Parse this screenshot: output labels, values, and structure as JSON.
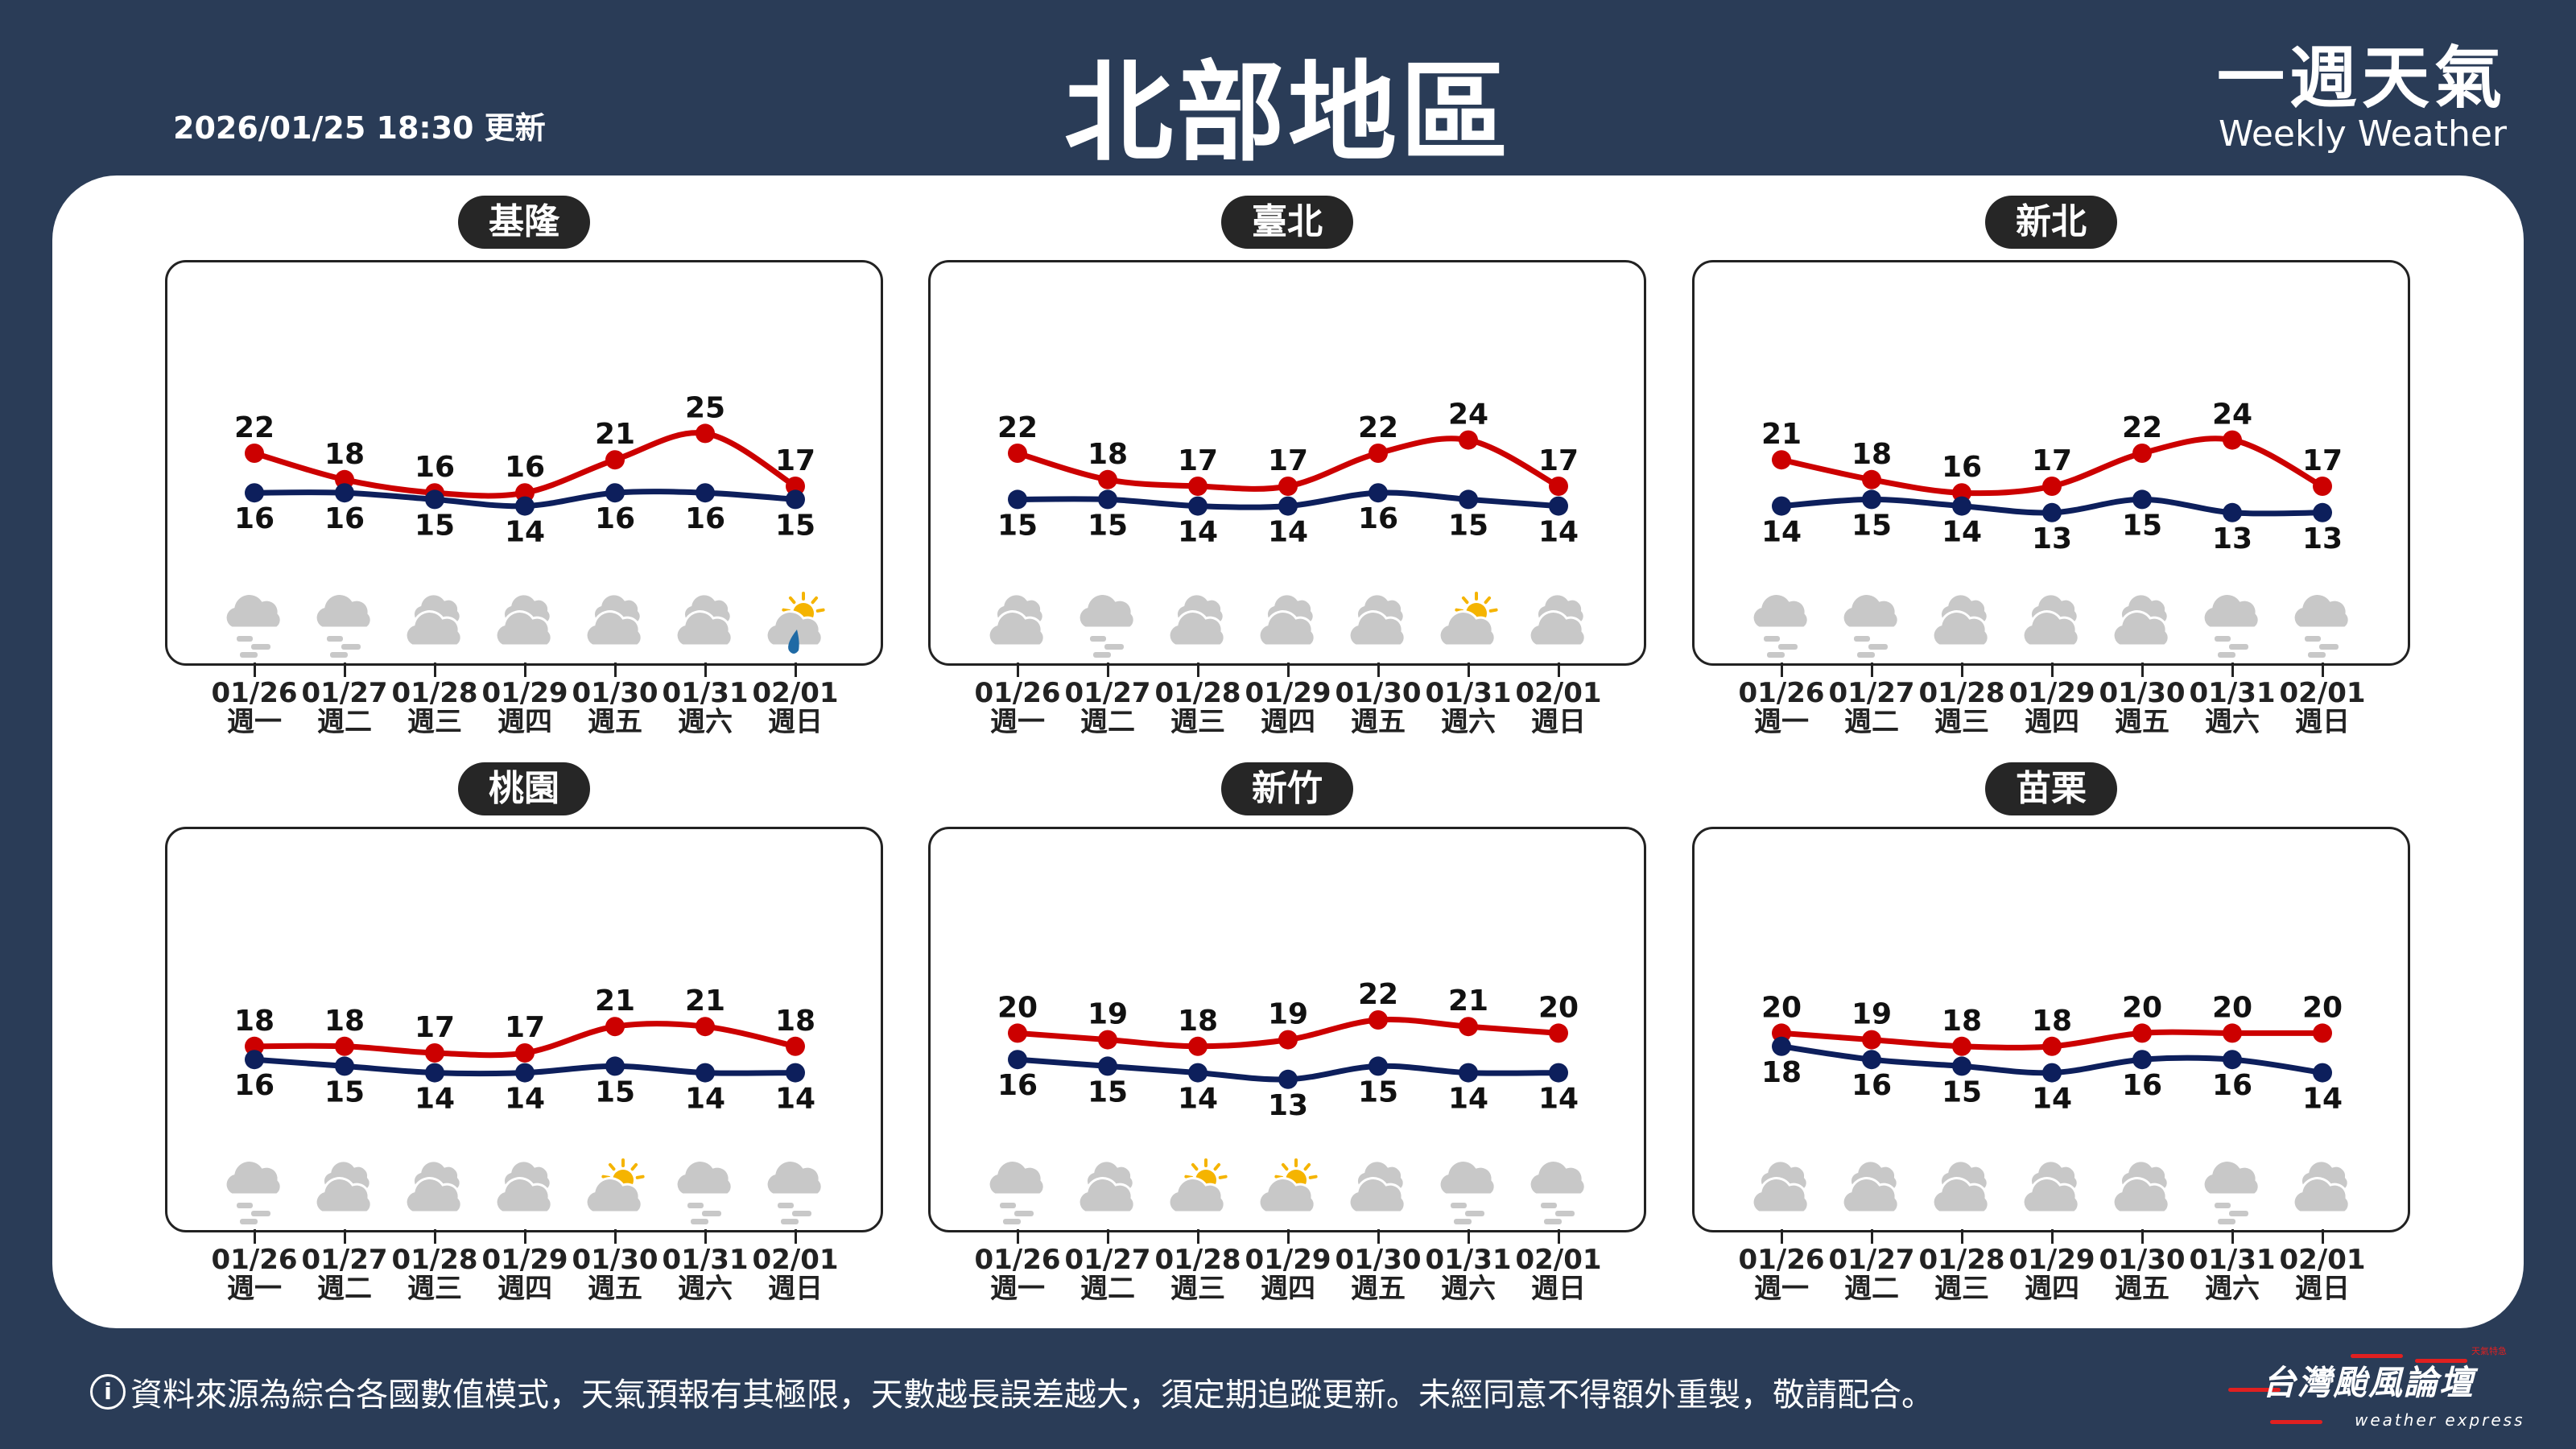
{
  "header": {
    "updated": "2026/01/25 18:30 更新",
    "title": "北部地區",
    "brand_zh": "一週天氣",
    "brand_en": "Weekly Weather"
  },
  "colors": {
    "background": "#2a3c57",
    "high": "#cc0000",
    "low": "#0d1f5c",
    "cloud": "#c8c8c8",
    "sun": "#f5b400",
    "rain": "#1f6aa5"
  },
  "days": [
    {
      "date": "01/26",
      "weekday": "週一"
    },
    {
      "date": "01/27",
      "weekday": "週二"
    },
    {
      "date": "01/28",
      "weekday": "週三"
    },
    {
      "date": "01/29",
      "weekday": "週四"
    },
    {
      "date": "01/30",
      "weekday": "週五"
    },
    {
      "date": "01/31",
      "weekday": "週六"
    },
    {
      "date": "02/01",
      "weekday": "週日"
    }
  ],
  "regions": [
    {
      "name": "基隆",
      "high": [
        22,
        18,
        16,
        16,
        21,
        25,
        17
      ],
      "low": [
        16,
        16,
        15,
        14,
        16,
        16,
        15
      ],
      "icons": [
        "cloud-fog",
        "cloud-fog",
        "cloudy",
        "cloudy",
        "cloudy",
        "cloudy",
        "sun-rain"
      ]
    },
    {
      "name": "臺北",
      "high": [
        22,
        18,
        17,
        17,
        22,
        24,
        17
      ],
      "low": [
        15,
        15,
        14,
        14,
        16,
        15,
        14
      ],
      "icons": [
        "cloudy",
        "cloud-fog",
        "cloudy",
        "cloudy",
        "cloudy",
        "partly-sunny",
        "cloudy"
      ]
    },
    {
      "name": "新北",
      "high": [
        21,
        18,
        16,
        17,
        22,
        24,
        17
      ],
      "low": [
        14,
        15,
        14,
        13,
        15,
        13,
        13
      ],
      "icons": [
        "cloud-fog",
        "cloud-fog",
        "cloudy",
        "cloudy",
        "cloudy",
        "cloud-fog",
        "cloud-fog"
      ]
    },
    {
      "name": "桃園",
      "high": [
        18,
        18,
        17,
        17,
        21,
        21,
        18
      ],
      "low": [
        16,
        15,
        14,
        14,
        15,
        14,
        14
      ],
      "icons": [
        "cloud-fog",
        "cloudy",
        "cloudy",
        "cloudy",
        "partly-sunny",
        "cloud-fog",
        "cloud-fog"
      ]
    },
    {
      "name": "新竹",
      "high": [
        20,
        19,
        18,
        19,
        22,
        21,
        20
      ],
      "low": [
        16,
        15,
        14,
        13,
        15,
        14,
        14
      ],
      "icons": [
        "cloud-fog",
        "cloudy",
        "partly-sunny",
        "partly-sunny",
        "cloudy",
        "cloud-fog",
        "cloud-fog"
      ]
    },
    {
      "name": "苗栗",
      "high": [
        20,
        19,
        18,
        18,
        20,
        20,
        20
      ],
      "low": [
        18,
        16,
        15,
        14,
        16,
        16,
        14
      ],
      "icons": [
        "cloudy",
        "cloudy",
        "cloudy",
        "cloudy",
        "cloudy",
        "cloud-fog",
        "cloudy"
      ]
    }
  ],
  "footer": {
    "info_icon": "i",
    "disclaimer": "資料來源為綜合各國數值模式，天氣預報有其極限，天數越長誤差越大，須定期追蹤更新。未經同意不得額外重製，敬請配合。"
  },
  "logo": {
    "zh": "台灣颱風論壇",
    "en": "weather express",
    "tag": "天氣特急"
  }
}
